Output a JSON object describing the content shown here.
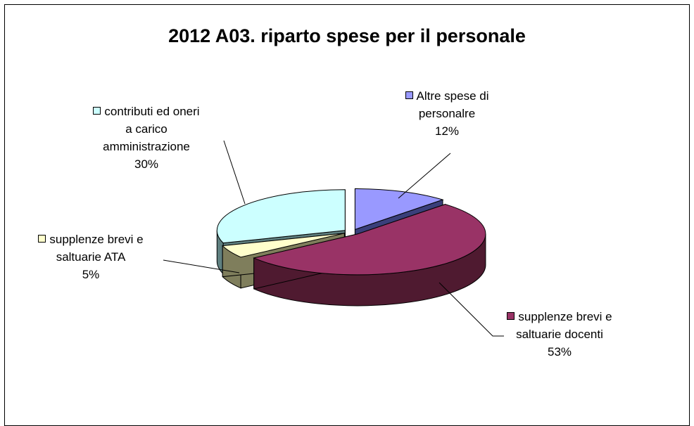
{
  "chart_data": {
    "type": "pie",
    "title": "2012  A03. riparto spese per il personale",
    "slices": [
      {
        "label_lines": [
          "Altre spese di",
          "personalre"
        ],
        "value": 12,
        "pct_label": "12%",
        "color": "#9999ff",
        "side": "#3a3f7a"
      },
      {
        "label_lines": [
          "supplenze brevi e",
          "saltuarie docenti"
        ],
        "value": 53,
        "pct_label": "53%",
        "color": "#993366",
        "side": "#4f1a30"
      },
      {
        "label_lines": [
          "supplenze brevi e",
          "saltuarie ATA"
        ],
        "value": 5,
        "pct_label": "5%",
        "color": "#ffffcc",
        "side": "#7f7e5c"
      },
      {
        "label_lines": [
          "contributi ed oneri",
          "a carico",
          "amministrazione"
        ],
        "value": 30,
        "pct_label": "30%",
        "color": "#ccffff",
        "side": "#5f8080"
      }
    ]
  }
}
